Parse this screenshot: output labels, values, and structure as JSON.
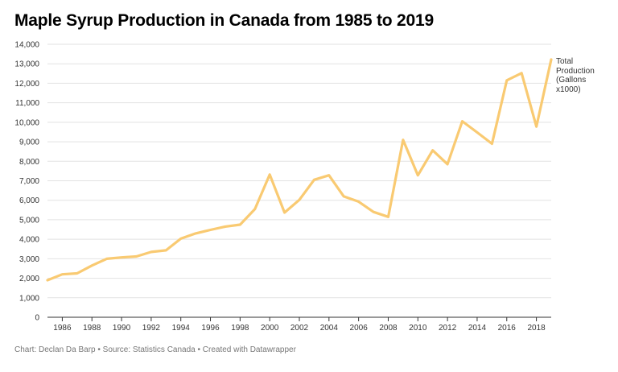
{
  "title": "Maple Syrup Production in Canada from 1985 to 2019",
  "footer": "Chart: Declan Da Barp • Source: Statistics Canada • Created with Datawrapper",
  "colors": {
    "line": "#F9CA72",
    "grid": "#E2E2E2",
    "axis": "#333333",
    "tick_text": "#333333"
  },
  "chart_data": {
    "type": "line",
    "title": "Maple Syrup Production in Canada from 1985 to 2019",
    "xlabel": "",
    "ylabel": "",
    "xlim": [
      1985,
      2019
    ],
    "ylim": [
      0,
      14000
    ],
    "grid": true,
    "y_ticks": [
      0,
      1000,
      2000,
      3000,
      4000,
      5000,
      6000,
      7000,
      8000,
      9000,
      10000,
      11000,
      12000,
      13000,
      14000
    ],
    "y_tick_labels": [
      "0",
      "1,000",
      "2,000",
      "3,000",
      "4,000",
      "5,000",
      "6,000",
      "7,000",
      "8,000",
      "9,000",
      "10,000",
      "11,000",
      "12,000",
      "13,000",
      "14,000"
    ],
    "x_ticks": [
      1986,
      1988,
      1990,
      1992,
      1994,
      1996,
      1998,
      2000,
      2002,
      2004,
      2006,
      2008,
      2010,
      2012,
      2014,
      2016,
      2018
    ],
    "x_tick_labels": [
      "1986",
      "1988",
      "1990",
      "1992",
      "1994",
      "1996",
      "1998",
      "2000",
      "2002",
      "2004",
      "2006",
      "2008",
      "2010",
      "2012",
      "2014",
      "2016",
      "2018"
    ],
    "series": [
      {
        "name": "Total Production (Gallons x1000)",
        "x": [
          1985,
          1986,
          1987,
          1988,
          1989,
          1990,
          1991,
          1992,
          1993,
          1994,
          1995,
          1996,
          1997,
          1998,
          1999,
          2000,
          2001,
          2002,
          2003,
          2004,
          2005,
          2006,
          2007,
          2008,
          2009,
          2010,
          2011,
          2012,
          2013,
          2014,
          2015,
          2016,
          2017,
          2018,
          2019
        ],
        "values": [
          1900,
          2200,
          2250,
          2650,
          3000,
          3070,
          3120,
          3350,
          3430,
          4030,
          4300,
          4480,
          4650,
          4750,
          5550,
          7320,
          5370,
          6020,
          7050,
          7280,
          6200,
          5930,
          5400,
          5150,
          9100,
          7280,
          8560,
          7850,
          10050,
          9480,
          8900,
          12150,
          12520,
          9780,
          13220
        ]
      }
    ],
    "legend_label": "Total Production (Gallons x1000)"
  }
}
